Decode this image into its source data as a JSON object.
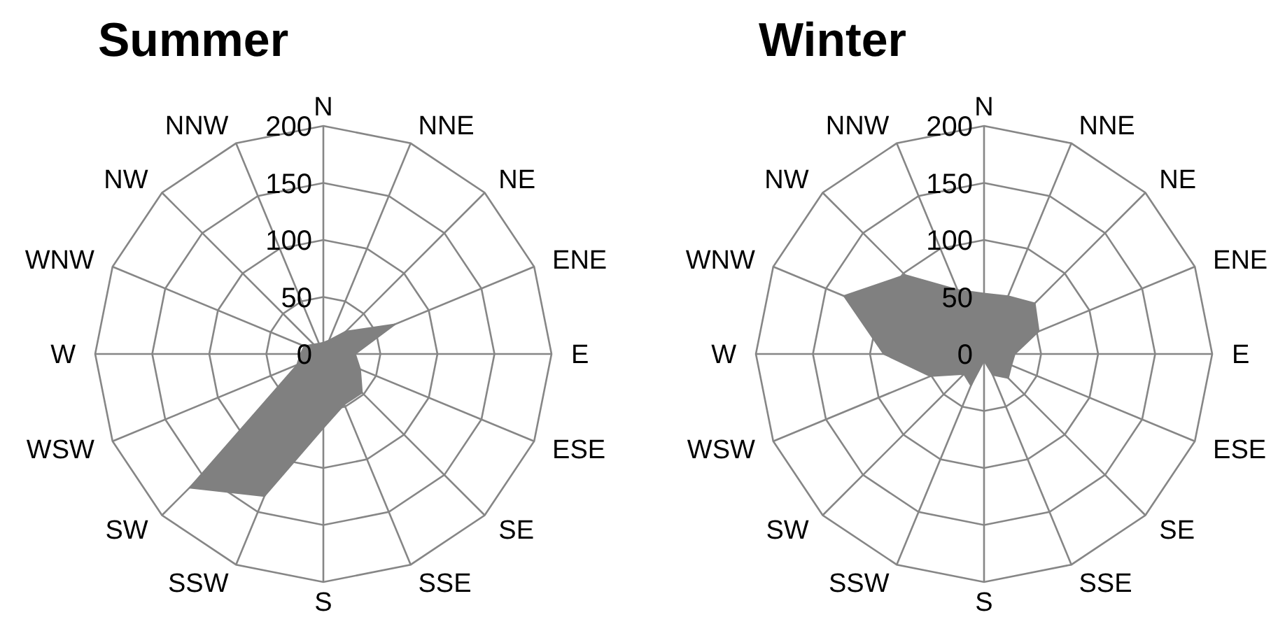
{
  "chart_data": [
    {
      "type": "radar",
      "title": "Summer",
      "categories": [
        "N",
        "NNE",
        "NE",
        "ENE",
        "E",
        "ESE",
        "SE",
        "SSE",
        "S",
        "SSW",
        "SW",
        "WSW",
        "W",
        "WNW",
        "NW",
        "NNW"
      ],
      "ylim": [
        0,
        200
      ],
      "yticks": [
        0,
        50,
        100,
        150,
        200
      ],
      "grid": true,
      "series": [
        {
          "color": "#808080",
          "values": [
            10,
            13,
            28,
            68,
            28,
            35,
            48,
            48,
            65,
            135,
            166,
            25,
            20,
            18,
            12,
            10
          ]
        }
      ]
    },
    {
      "type": "radar",
      "title": "Winter",
      "categories": [
        "N",
        "NNE",
        "NE",
        "ENE",
        "E",
        "ESE",
        "SE",
        "SSE",
        "S",
        "SSW",
        "SW",
        "WSW",
        "W",
        "WNW",
        "NW",
        "NNW"
      ],
      "ylim": [
        0,
        200
      ],
      "yticks": [
        0,
        50,
        100,
        150,
        200
      ],
      "grid": true,
      "series": [
        {
          "color": "#808080",
          "values": [
            53,
            55,
            63,
            52,
            27,
            26,
            30,
            20,
            6,
            30,
            25,
            51,
            88,
            133,
            98,
            61
          ]
        }
      ]
    }
  ]
}
